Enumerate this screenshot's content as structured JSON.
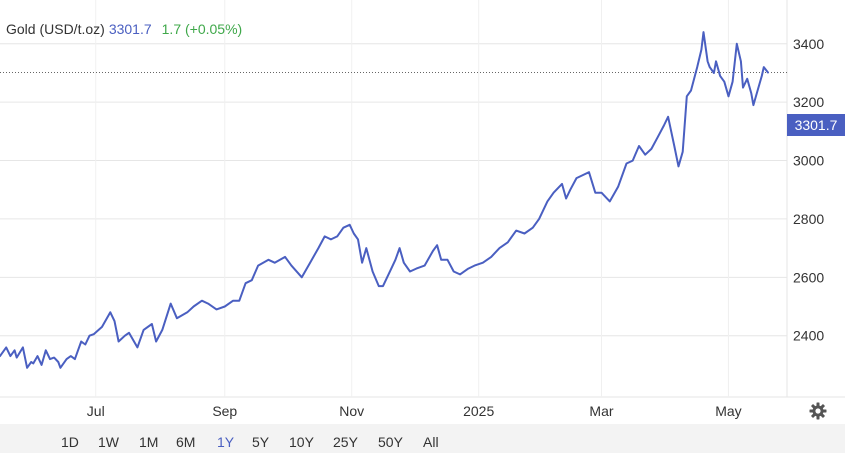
{
  "header": {
    "symbol": "Gold (USD/t.oz)",
    "price": "3301.7",
    "change": "1.7 (+0.05%)"
  },
  "price_tag": "3301.7",
  "range_buttons": [
    "1D",
    "1W",
    "1M",
    "6M",
    "1Y",
    "5Y",
    "10Y",
    "25Y",
    "50Y",
    "All"
  ],
  "active_range": "1Y",
  "colors": {
    "line": "#4a5fc1",
    "positive": "#3fa84a",
    "grid": "#e6e6e6"
  },
  "icons": {
    "settings": "gear-icon"
  },
  "chart_data": {
    "type": "line",
    "title": "Gold (USD/t.oz)",
    "xlabel": "",
    "ylabel": "",
    "ylim": [
      2200,
      3600
    ],
    "yticks": [
      2400,
      2600,
      2800,
      3000,
      3200,
      3400,
      3600
    ],
    "x_range": [
      "2024-05-16",
      "2025-05-20"
    ],
    "xticks": [
      {
        "date": "2024-07-01",
        "label": "Jul"
      },
      {
        "date": "2024-09-01",
        "label": "Sep"
      },
      {
        "date": "2024-11-01",
        "label": "Nov"
      },
      {
        "date": "2025-01-01",
        "label": "2025"
      },
      {
        "date": "2025-03-01",
        "label": "Mar"
      },
      {
        "date": "2025-05-01",
        "label": "May"
      }
    ],
    "grid": true,
    "last_value": 3301.7,
    "series": [
      {
        "name": "Gold (USD/t.oz)",
        "x": [
          "2024-05-16",
          "2024-05-19",
          "2024-05-21",
          "2024-05-23",
          "2024-05-24",
          "2024-05-27",
          "2024-05-29",
          "2024-05-31",
          "2024-06-01",
          "2024-06-03",
          "2024-06-05",
          "2024-06-07",
          "2024-06-09",
          "2024-06-11",
          "2024-06-13",
          "2024-06-14",
          "2024-06-17",
          "2024-06-19",
          "2024-06-21",
          "2024-06-22",
          "2024-06-24",
          "2024-06-26",
          "2024-06-28",
          "2024-06-30",
          "2024-07-04",
          "2024-07-08",
          "2024-07-10",
          "2024-07-12",
          "2024-07-15",
          "2024-07-17",
          "2024-07-21",
          "2024-07-24",
          "2024-07-28",
          "2024-07-30",
          "2024-08-02",
          "2024-08-06",
          "2024-08-09",
          "2024-08-14",
          "2024-08-17",
          "2024-08-21",
          "2024-08-24",
          "2024-08-28",
          "2024-09-01",
          "2024-09-05",
          "2024-09-08",
          "2024-09-11",
          "2024-09-14",
          "2024-09-17",
          "2024-09-22",
          "2024-09-25",
          "2024-09-30",
          "2024-10-03",
          "2024-10-08",
          "2024-10-12",
          "2024-10-16",
          "2024-10-19",
          "2024-10-22",
          "2024-10-25",
          "2024-10-28",
          "2024-10-31",
          "2024-11-02",
          "2024-11-04",
          "2024-11-06",
          "2024-11-08",
          "2024-11-11",
          "2024-11-14",
          "2024-11-16",
          "2024-11-20",
          "2024-11-22",
          "2024-11-24",
          "2024-11-26",
          "2024-11-29",
          "2024-12-02",
          "2024-12-06",
          "2024-12-10",
          "2024-12-12",
          "2024-12-14",
          "2024-12-17",
          "2024-12-20",
          "2024-12-23",
          "2024-12-27",
          "2024-12-30",
          "2025-01-03",
          "2025-01-07",
          "2025-01-11",
          "2025-01-15",
          "2025-01-19",
          "2025-01-23",
          "2025-01-27",
          "2025-01-30",
          "2025-02-03",
          "2025-02-06",
          "2025-02-10",
          "2025-02-12",
          "2025-02-14",
          "2025-02-17",
          "2025-02-20",
          "2025-02-23",
          "2025-02-26",
          "2025-03-01",
          "2025-03-05",
          "2025-03-09",
          "2025-03-13",
          "2025-03-16",
          "2025-03-19",
          "2025-03-22",
          "2025-03-25",
          "2025-03-28",
          "2025-03-31",
          "2025-04-02",
          "2025-04-05",
          "2025-04-07",
          "2025-04-09",
          "2025-04-11",
          "2025-04-13",
          "2025-04-16",
          "2025-04-18",
          "2025-04-19",
          "2025-04-21",
          "2025-04-22",
          "2025-04-24",
          "2025-04-25",
          "2025-04-27",
          "2025-04-29",
          "2025-05-01",
          "2025-05-03",
          "2025-05-05",
          "2025-05-07",
          "2025-05-08",
          "2025-05-10",
          "2025-05-12",
          "2025-05-13",
          "2025-05-15",
          "2025-05-17",
          "2025-05-18",
          "2025-05-20"
        ],
        "y": [
          2330,
          2360,
          2330,
          2350,
          2325,
          2360,
          2290,
          2310,
          2305,
          2330,
          2300,
          2350,
          2320,
          2325,
          2310,
          2290,
          2320,
          2330,
          2320,
          2340,
          2380,
          2370,
          2400,
          2405,
          2430,
          2480,
          2450,
          2380,
          2400,
          2410,
          2360,
          2420,
          2440,
          2380,
          2420,
          2510,
          2460,
          2480,
          2500,
          2520,
          2510,
          2490,
          2500,
          2520,
          2520,
          2580,
          2590,
          2640,
          2660,
          2650,
          2670,
          2640,
          2600,
          2650,
          2700,
          2740,
          2730,
          2740,
          2770,
          2780,
          2750,
          2730,
          2650,
          2700,
          2620,
          2570,
          2570,
          2630,
          2660,
          2700,
          2650,
          2620,
          2630,
          2640,
          2690,
          2710,
          2660,
          2660,
          2620,
          2610,
          2630,
          2640,
          2650,
          2670,
          2700,
          2720,
          2760,
          2750,
          2770,
          2800,
          2860,
          2890,
          2920,
          2870,
          2900,
          2940,
          2950,
          2960,
          2890,
          2890,
          2860,
          2910,
          2990,
          3000,
          3050,
          3020,
          3040,
          3080,
          3120,
          3150,
          3050,
          2980,
          3030,
          3220,
          3240,
          3320,
          3380,
          3440,
          3340,
          3320,
          3300,
          3340,
          3290,
          3270,
          3220,
          3270,
          3400,
          3340,
          3250,
          3280,
          3230,
          3190,
          3240,
          3290,
          3320,
          3301.7
        ]
      }
    ]
  }
}
